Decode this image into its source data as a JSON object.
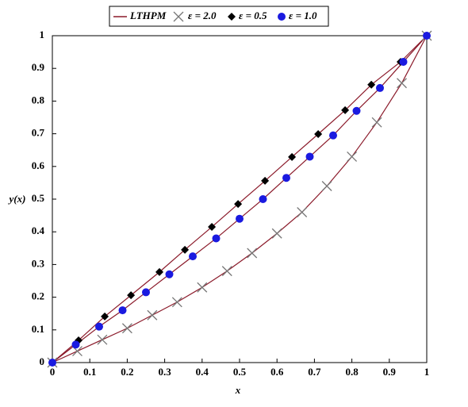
{
  "chart_data": {
    "type": "line",
    "xlabel": "x",
    "ylabel": "y(x)",
    "xlim": [
      0,
      1
    ],
    "ylim": [
      0,
      1
    ],
    "xticks": [
      0,
      0.1,
      0.2,
      0.3,
      0.4,
      0.5,
      0.6,
      0.7,
      0.8,
      0.9,
      1
    ],
    "yticks": [
      0,
      0.1,
      0.2,
      0.3,
      0.4,
      0.5,
      0.6,
      0.7,
      0.8,
      0.9,
      1
    ],
    "line_name": "LTHPM",
    "line_color": "#8b1a2a",
    "series": [
      {
        "name": "ε = 2.0",
        "color": "#777777",
        "marker": "cross",
        "x": [
          0,
          0.0667,
          0.1333,
          0.2,
          0.2667,
          0.3333,
          0.4,
          0.4667,
          0.5333,
          0.6,
          0.6667,
          0.7333,
          0.8,
          0.8667,
          0.9333,
          1
        ],
        "values": [
          0,
          0.035,
          0.07,
          0.105,
          0.145,
          0.185,
          0.23,
          0.28,
          0.335,
          0.395,
          0.46,
          0.54,
          0.63,
          0.735,
          0.855,
          1
        ]
      },
      {
        "name": "ε = 0.5",
        "color": "#000000",
        "marker": "diamond",
        "x": [
          0,
          0.07,
          0.14,
          0.21,
          0.286,
          0.354,
          0.426,
          0.496,
          0.568,
          0.64,
          0.71,
          0.782,
          0.852,
          0.93,
          1
        ],
        "values": [
          0,
          0.068,
          0.141,
          0.206,
          0.277,
          0.345,
          0.415,
          0.485,
          0.556,
          0.629,
          0.699,
          0.772,
          0.85,
          0.92,
          1
        ]
      },
      {
        "name": "ε = 1.0",
        "color": "#1a1ae0",
        "marker": "circle",
        "x": [
          0,
          0.0625,
          0.125,
          0.1875,
          0.25,
          0.3125,
          0.375,
          0.4375,
          0.5,
          0.5625,
          0.625,
          0.6875,
          0.75,
          0.8125,
          0.875,
          0.9375,
          1
        ],
        "values": [
          0,
          0.055,
          0.11,
          0.16,
          0.215,
          0.27,
          0.325,
          0.38,
          0.44,
          0.5,
          0.565,
          0.63,
          0.695,
          0.77,
          0.84,
          0.92,
          1
        ]
      }
    ]
  }
}
